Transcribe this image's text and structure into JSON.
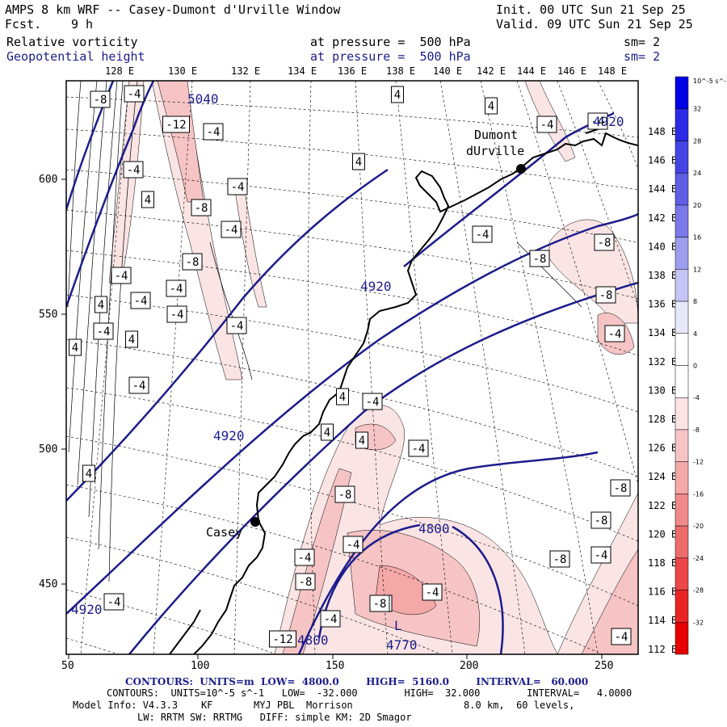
{
  "header": {
    "title": "AMPS 8 km WRF -- Casey-Dumont d'Urville Window",
    "fcst_label": "Fcst.",
    "fcst_value": "9 h",
    "init": "Init. 00 UTC Sun 21 Sep 25",
    "valid": "Valid. 09 UTC Sun 21 Sep 25",
    "field1_name": "Relative vorticity",
    "field1_level": "at pressure =  500 hPa",
    "field1_sm": "sm= 2",
    "field2_name": "Geopotential height",
    "field2_level": "at pressure =  500 hPa",
    "field2_sm": "sm= 2"
  },
  "axes": {
    "top_lon_labels": [
      "128 E",
      "130 E",
      "132 E",
      "134 E",
      "136 E",
      "138 E",
      "140 E",
      "142 E",
      "144 E",
      "146 E",
      "148 E"
    ],
    "right_lon_labels": [
      "148 E",
      "146 E",
      "144 E",
      "142 E",
      "140 E",
      "138 E",
      "136 E",
      "134 E",
      "132 E",
      "130 E",
      "128 E",
      "126 E",
      "124 E",
      "122 E",
      "120 E",
      "118 E",
      "116 E",
      "114 E",
      "112 E"
    ],
    "x_ticks": [
      "50",
      "100",
      "150",
      "200",
      "250"
    ],
    "y_ticks": [
      "600",
      "550",
      "500",
      "450"
    ]
  },
  "colorbar": {
    "unit_label": "10^-5 s^-1",
    "levels": [
      "32",
      "28",
      "24",
      "20",
      "16",
      "12",
      "8",
      "4",
      "0",
      "-4",
      "-8",
      "-12",
      "-16",
      "-20",
      "-24",
      "-28",
      "-32"
    ],
    "colors": [
      "#0000e6",
      "#2b2be6",
      "#4545e6",
      "#5f5fe6",
      "#7979ea",
      "#9d9df0",
      "#c5c5f6",
      "#e8e8fb",
      "#ffffff",
      "#ffffff",
      "#fbe4e4",
      "#f6c4c4",
      "#f4a8a8",
      "#f08a8a",
      "#ee6c6c",
      "#ec4646",
      "#ea2424",
      "#e60000"
    ]
  },
  "places": [
    {
      "name": "Dumont\ndUrville"
    },
    {
      "name": "Casey"
    }
  ],
  "height_labels": [
    "5040",
    "4920",
    "4920",
    "4920",
    "4800",
    "4800",
    "4770",
    "4920"
  ],
  "low_label": "L",
  "vort_labels": [
    "-8",
    "-4",
    "-12",
    "-4",
    "-4",
    "-4",
    "4",
    "-8",
    "-4",
    "-4",
    "4",
    "-8",
    "-4",
    "-4",
    "-4",
    "-4",
    "-4",
    "4",
    "4",
    "-4",
    "4",
    "-4",
    "4",
    "-4",
    "4",
    "4",
    "-4",
    "-8",
    "-4",
    "-4",
    "-8",
    "-8",
    "-4",
    "-4",
    "-4",
    "-8",
    "-8",
    "-8",
    "-4",
    "-8",
    "-8",
    "-4",
    "-8",
    "-4",
    "-12",
    "4",
    "4",
    "4",
    "-4",
    "-4",
    "-8"
  ],
  "footer": {
    "line1": "CONTOURS:  UNITS=m  LOW=  4800.0        HIGH=  5160.0        INTERVAL=   60.000",
    "line2": "CONTOURS:  UNITS=10^-5 s^-1   LOW=  -32.000        HIGH=  32.000        INTERVAL=   4.0000",
    "line3": "Model Info: V4.3.3    KF       MYJ PBL  Morrison                   8.0 km,  60 levels,",
    "line4": "LW: RRTM SW: RRTMG   DIFF: simple KM: 2D Smagor"
  }
}
